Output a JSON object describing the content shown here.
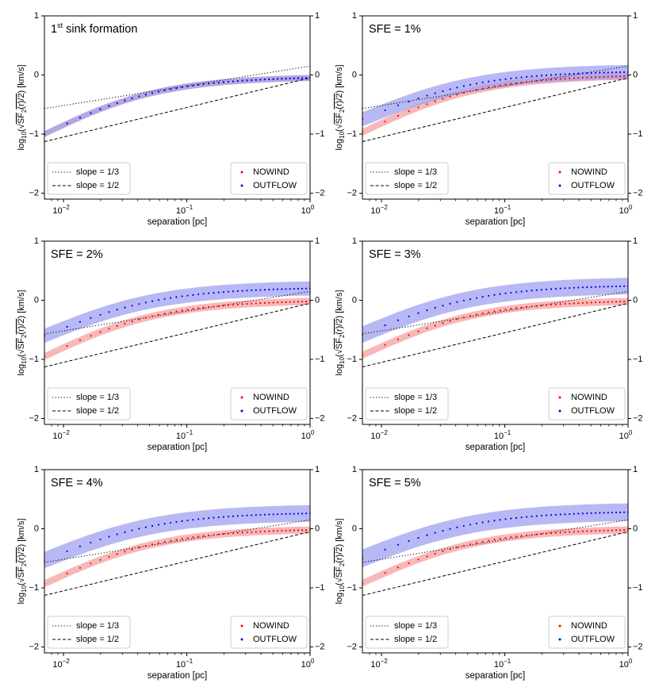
{
  "figure": {
    "xlabel": "separation [pc]",
    "ylabel": "log10(√SF2(r)/2) [km/s]",
    "ylabel_parts": {
      "prefix": "log",
      "sub": "10",
      "open": "(",
      "root": "√",
      "sf": "SF",
      "sf_sub": "2",
      "arg": "(r)/2",
      "close": ")",
      "units": " [km/s]"
    },
    "x_ticks": [
      {
        "base": "10",
        "exp": "−2",
        "value": 0.01
      },
      {
        "base": "10",
        "exp": "−1",
        "value": 0.1
      },
      {
        "base": "10",
        "exp": "0",
        "value": 1
      }
    ],
    "y_ticks": [
      {
        "label": "1",
        "value": 1
      },
      {
        "label": "0",
        "value": 0
      },
      {
        "label": "−1",
        "value": -1
      },
      {
        "label": "−2",
        "value": -2
      }
    ],
    "legend_left": [
      {
        "label": "slope = 1/3",
        "style": "dotted"
      },
      {
        "label": "slope = 1/2",
        "style": "dashed"
      }
    ],
    "legend_right": [
      {
        "label": "NOWIND",
        "color": "#ff0000"
      },
      {
        "label": "OUTFLOW",
        "color": "#0000ff"
      }
    ],
    "colors": {
      "nowind": "#ff0000",
      "outflow": "#0000ff",
      "nowind_band": "#f4a0a0",
      "outflow_band": "#a0a0f0"
    }
  },
  "chart_data": [
    {
      "type": "scatter",
      "title": "1st sink formation",
      "title_main": "1",
      "title_sup": "st",
      "title_rest": " sink formation",
      "xscale": "log",
      "xlim": [
        0.007,
        1.0
      ],
      "ylim": [
        -2.1,
        1.0
      ],
      "nowind": {
        "start": -1.0,
        "end": -0.05,
        "band": 0.05
      },
      "outflow": {
        "start": -1.0,
        "end": -0.05,
        "band": 0.05
      },
      "series": [
        {
          "name": "NOWIND"
        },
        {
          "name": "OUTFLOW"
        }
      ]
    },
    {
      "type": "scatter",
      "title": "SFE = 1%",
      "xscale": "log",
      "xlim": [
        0.007,
        1.0
      ],
      "ylim": [
        -2.1,
        1.0
      ],
      "nowind": {
        "start": -0.97,
        "end": -0.02,
        "band": 0.06
      },
      "outflow": {
        "start": -0.75,
        "end": 0.05,
        "band": 0.12
      },
      "series": [
        {
          "name": "NOWIND"
        },
        {
          "name": "OUTFLOW"
        }
      ]
    },
    {
      "type": "scatter",
      "title": "SFE = 2%",
      "xscale": "log",
      "xlim": [
        0.007,
        1.0
      ],
      "ylim": [
        -2.1,
        1.0
      ],
      "nowind": {
        "start": -0.95,
        "end": -0.02,
        "band": 0.06
      },
      "outflow": {
        "start": -0.6,
        "end": 0.2,
        "band": 0.12
      },
      "series": [
        {
          "name": "NOWIND"
        },
        {
          "name": "OUTFLOW"
        }
      ]
    },
    {
      "type": "scatter",
      "title": "SFE = 3%",
      "xscale": "log",
      "xlim": [
        0.007,
        1.0
      ],
      "ylim": [
        -2.1,
        1.0
      ],
      "nowind": {
        "start": -0.93,
        "end": -0.02,
        "band": 0.06
      },
      "outflow": {
        "start": -0.58,
        "end": 0.24,
        "band": 0.14
      },
      "series": [
        {
          "name": "NOWIND"
        },
        {
          "name": "OUTFLOW"
        }
      ]
    },
    {
      "type": "scatter",
      "title": "SFE = 4%",
      "xscale": "log",
      "xlim": [
        0.007,
        1.0
      ],
      "ylim": [
        -2.1,
        1.0
      ],
      "nowind": {
        "start": -0.93,
        "end": -0.02,
        "band": 0.06
      },
      "outflow": {
        "start": -0.53,
        "end": 0.26,
        "band": 0.14
      },
      "series": [
        {
          "name": "NOWIND"
        },
        {
          "name": "OUTFLOW"
        }
      ]
    },
    {
      "type": "scatter",
      "title": "SFE = 5%",
      "xscale": "log",
      "xlim": [
        0.007,
        1.0
      ],
      "ylim": [
        -2.1,
        1.0
      ],
      "nowind": {
        "start": -0.92,
        "end": -0.02,
        "band": 0.06
      },
      "outflow": {
        "start": -0.5,
        "end": 0.28,
        "band": 0.15
      },
      "series": [
        {
          "name": "NOWIND"
        },
        {
          "name": "OUTFLOW"
        }
      ]
    }
  ],
  "reference_lines": {
    "slope_third": {
      "slope": 0.3333,
      "y_at_1pc": 0.15
    },
    "slope_half": {
      "slope": 0.5,
      "y_at_1pc": -0.05
    }
  }
}
